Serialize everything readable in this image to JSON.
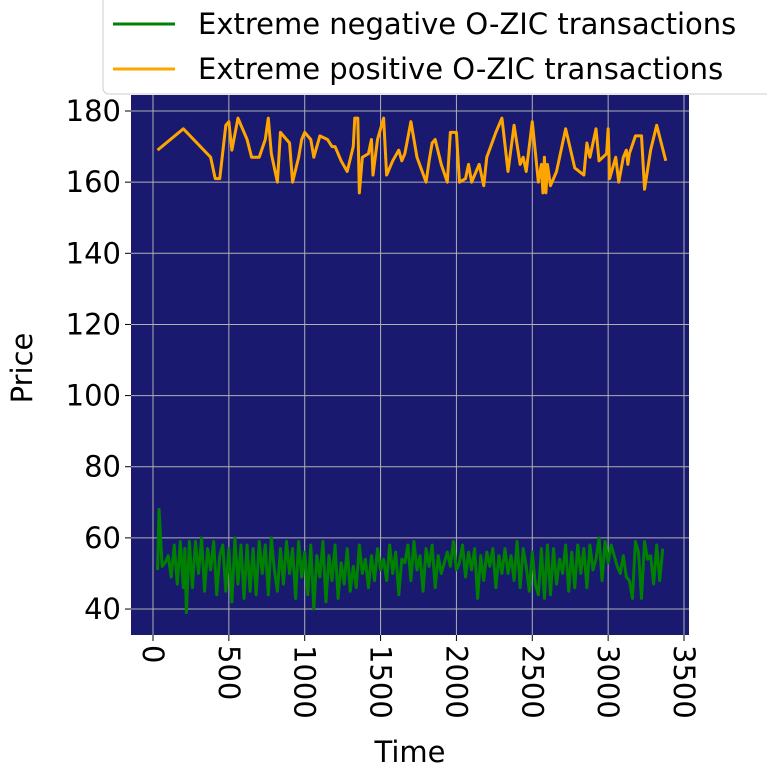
{
  "chart_data": {
    "type": "line",
    "x_label": "Time",
    "y_label": "Price",
    "xlim": [
      -145,
      3533
    ],
    "ylim": [
      32.7,
      184.5
    ],
    "xticks": [
      0,
      500,
      1000,
      1500,
      2000,
      2500,
      3000,
      3500
    ],
    "yticks": [
      40,
      60,
      80,
      100,
      120,
      140,
      160,
      180
    ],
    "grid": true,
    "background": "#191970",
    "series": [
      {
        "name": "Extreme negative O-ZIC transactions",
        "color": "#008000",
        "x": [
          30,
          40,
          60,
          80,
          100,
          120,
          140,
          160,
          180,
          200,
          210,
          220,
          240,
          260,
          280,
          300,
          320,
          340,
          360,
          380,
          400,
          420,
          440,
          460,
          480,
          500,
          520,
          540,
          560,
          580,
          600,
          620,
          640,
          660,
          680,
          700,
          720,
          740,
          760,
          780,
          800,
          820,
          840,
          860,
          880,
          900,
          920,
          940,
          960,
          980,
          1000,
          1020,
          1040,
          1060,
          1080,
          1100,
          1120,
          1140,
          1160,
          1180,
          1200,
          1220,
          1240,
          1260,
          1280,
          1300,
          1320,
          1340,
          1360,
          1380,
          1400,
          1420,
          1440,
          1460,
          1480,
          1500,
          1520,
          1540,
          1560,
          1580,
          1600,
          1620,
          1640,
          1660,
          1680,
          1700,
          1720,
          1740,
          1760,
          1780,
          1800,
          1820,
          1840,
          1860,
          1880,
          1900,
          1920,
          1940,
          1960,
          1980,
          2000,
          2020,
          2040,
          2060,
          2080,
          2100,
          2120,
          2140,
          2160,
          2180,
          2200,
          2220,
          2240,
          2260,
          2280,
          2300,
          2320,
          2340,
          2360,
          2380,
          2400,
          2420,
          2440,
          2460,
          2480,
          2500,
          2520,
          2540,
          2560,
          2580,
          2600,
          2620,
          2640,
          2660,
          2680,
          2700,
          2720,
          2740,
          2760,
          2780,
          2800,
          2820,
          2840,
          2860,
          2880,
          2900,
          2920,
          2940,
          2960,
          2980,
          3000,
          3020,
          3040,
          3060,
          3080,
          3100,
          3120,
          3140,
          3160,
          3180,
          3200,
          3220,
          3240,
          3260,
          3280,
          3300,
          3320,
          3340,
          3360
        ],
        "values": [
          51,
          68,
          52,
          53,
          55,
          49,
          58,
          47,
          59,
          46,
          57,
          39,
          59,
          46,
          59,
          50,
          60,
          45,
          57,
          51,
          59,
          44,
          55,
          58,
          45,
          57,
          42,
          60,
          47,
          58,
          43,
          58,
          45,
          57,
          44,
          59,
          50,
          58,
          44,
          60,
          51,
          45,
          57,
          47,
          59,
          50,
          57,
          43,
          59,
          49,
          56,
          44,
          58,
          40,
          55,
          49,
          59,
          42,
          55,
          48,
          58,
          43,
          53,
          47,
          57,
          45,
          52,
          46,
          58,
          50,
          54,
          46,
          55,
          48,
          57,
          51,
          54,
          48,
          58,
          50,
          56,
          44,
          54,
          53,
          58,
          48,
          59,
          51,
          55,
          45,
          57,
          52,
          58,
          46,
          55,
          50,
          53,
          56,
          52,
          59,
          51,
          53,
          58,
          49,
          56,
          51,
          57,
          43,
          55,
          48,
          56,
          52,
          57,
          46,
          55,
          50,
          57,
          50,
          55,
          48,
          59,
          46,
          57,
          52,
          45,
          56,
          47,
          44,
          57,
          43,
          58,
          44,
          57,
          47,
          54,
          50,
          58,
          45,
          56,
          46,
          58,
          50,
          57,
          46,
          58,
          51,
          54,
          60,
          48,
          59,
          53,
          58,
          55,
          52,
          50,
          55,
          49,
          48,
          43,
          59,
          56,
          43,
          59,
          54,
          55,
          47,
          58,
          48,
          57
        ]
      },
      {
        "name": "Extreme positive O-ZIC transactions",
        "color": "#ffa500",
        "x": [
          30,
          200,
          380,
          410,
          440,
          480,
          500,
          520,
          560,
          620,
          650,
          700,
          740,
          760,
          780,
          820,
          840,
          900,
          920,
          960,
          980,
          1000,
          1040,
          1060,
          1100,
          1150,
          1180,
          1200,
          1240,
          1280,
          1320,
          1330,
          1350,
          1360,
          1380,
          1420,
          1440,
          1450,
          1480,
          1500,
          1520,
          1540,
          1580,
          1620,
          1640,
          1660,
          1700,
          1740,
          1800,
          1820,
          1840,
          1860,
          1900,
          1940,
          1960,
          2000,
          2020,
          2060,
          2080,
          2100,
          2150,
          2180,
          2200,
          2260,
          2300,
          2340,
          2380,
          2420,
          2440,
          2460,
          2500,
          2540,
          2560,
          2570,
          2580,
          2590,
          2600,
          2620,
          2660,
          2720,
          2780,
          2840,
          2860,
          2880,
          2920,
          2940,
          2990,
          3000,
          3010,
          3050,
          3070,
          3100,
          3120,
          3130,
          3140,
          3180,
          3220,
          3240,
          3280,
          3320,
          3380
        ],
        "values": [
          169,
          175,
          167,
          161,
          161,
          176,
          177,
          169,
          178,
          172,
          167,
          167,
          172,
          178,
          168,
          160,
          174,
          171,
          160,
          167,
          172,
          174,
          172,
          167,
          173,
          172,
          170,
          170,
          166,
          163,
          170,
          178,
          178,
          157,
          167,
          168,
          172,
          162,
          172,
          175,
          178,
          162,
          166,
          169,
          166,
          168,
          177,
          167,
          160,
          166,
          171,
          172,
          165,
          160,
          174,
          174,
          160,
          161,
          165,
          160,
          165,
          159,
          167,
          174,
          178,
          163,
          176,
          165,
          167,
          163,
          177,
          160,
          165,
          157,
          167,
          157,
          165,
          159,
          163,
          175,
          164,
          162,
          171,
          167,
          175,
          166,
          168,
          175,
          161,
          167,
          160,
          167,
          169,
          165,
          168,
          173,
          173,
          158,
          169,
          176,
          166
        ]
      }
    ]
  }
}
